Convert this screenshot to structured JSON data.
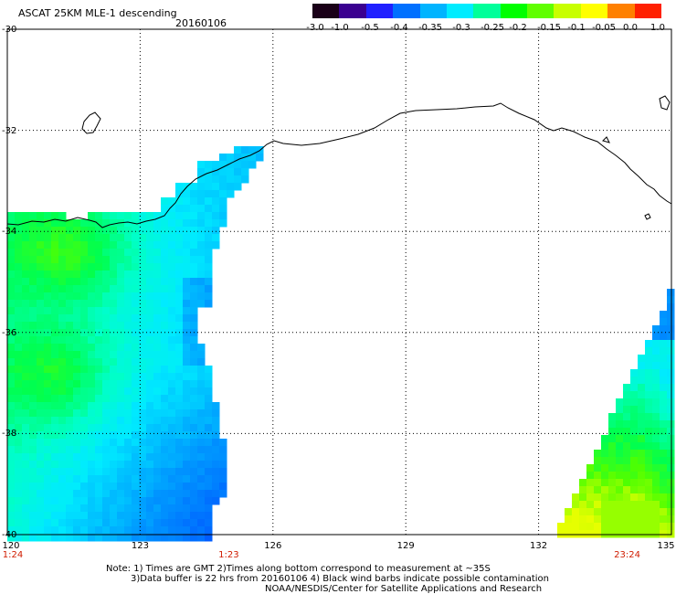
{
  "header": {
    "title": "ASCAT 25KM MLE-1 descending",
    "date": "20160106"
  },
  "colorbar": {
    "labels": [
      "-3.0",
      "-1.0",
      "-0.5",
      "-0.4",
      "-0.35",
      "-0.3",
      "-0.25",
      "-0.2",
      "-0.15",
      "-0.1",
      "-0.05",
      "0.0",
      "1.0"
    ],
    "stops": [
      "#1a0018",
      "#3a0090",
      "#2020ff",
      "#0070ff",
      "#00b4ff",
      "#00ecff",
      "#00ff9a",
      "#00ff00",
      "#60ff00",
      "#c8ff00",
      "#ffff00",
      "#ff8000",
      "#ff2000"
    ]
  },
  "map": {
    "lat_labels": [
      "-30",
      "-32",
      "-34",
      "-36",
      "-38",
      "-40"
    ],
    "lon_labels": [
      "120",
      "123",
      "126",
      "129",
      "132",
      "135"
    ],
    "lat_values": [
      -30,
      -32,
      -34,
      -36,
      -38,
      -40
    ],
    "lon_values": [
      120,
      123,
      126,
      129,
      132,
      135
    ],
    "pass_times": [
      {
        "label": "1:24",
        "lon": 120.0
      },
      {
        "label": "1:23",
        "lon": 125.0
      },
      {
        "label": "23:24",
        "lon": 134.0
      }
    ],
    "colors": {
      "coast": "#000000",
      "grid": "#000000",
      "times": "#d01c00"
    }
  },
  "notes": {
    "line1": "Note: 1) Times are GMT 2)Times along bottom correspond to measurement at ~35S",
    "line2": "3)Data buffer is 22 hrs from 20160106 4) Black wind barbs indicate possible contamination",
    "line3": "NOAA/NESDIS/Center for Satellite Applications and Research"
  }
}
